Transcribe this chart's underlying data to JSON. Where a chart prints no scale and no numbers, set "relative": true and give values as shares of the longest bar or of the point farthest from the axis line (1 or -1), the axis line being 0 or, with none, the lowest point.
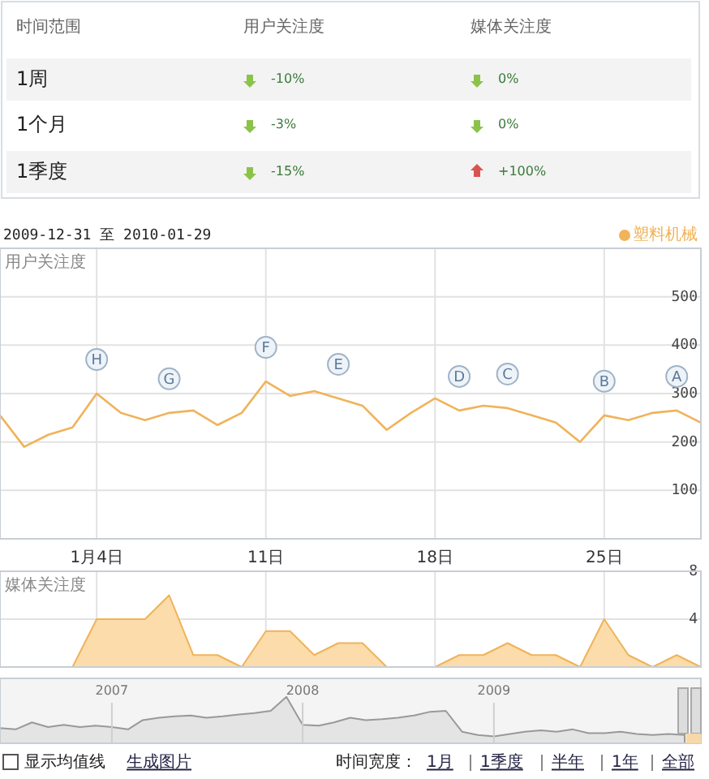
{
  "chart_data": [
    {
      "type": "other",
      "annotations": [
        "时间范围",
        "用户关注度",
        "媒体关注度",
        "1周",
        "-10%",
        "0%",
        "1个月",
        "-3%",
        "0%",
        "1季度",
        "-15%",
        "+100%"
      ]
    },
    {
      "type": "line",
      "title": "2009-12-31 至 2010-01-29",
      "ylabel": "用户关注度",
      "legend": "top right",
      "grid": true,
      "x": [
        "2009-12-31",
        "2010-01-01",
        "2010-01-02",
        "2010-01-03",
        "2010-01-04",
        "2010-01-05",
        "2010-01-06",
        "2010-01-07",
        "2010-01-08",
        "2010-01-09",
        "2010-01-10",
        "2010-01-11",
        "2010-01-12",
        "2010-01-13",
        "2010-01-14",
        "2010-01-15",
        "2010-01-16",
        "2010-01-17",
        "2010-01-18",
        "2010-01-19",
        "2010-01-20",
        "2010-01-21",
        "2010-01-22",
        "2010-01-23",
        "2010-01-24",
        "2010-01-25",
        "2010-01-26",
        "2010-01-27",
        "2010-01-28",
        "2010-01-29"
      ],
      "series": [
        {
          "name": "塑料机械",
          "color": "#f0b35a",
          "values": [
            255,
            190,
            215,
            230,
            300,
            260,
            245,
            260,
            265,
            235,
            260,
            325,
            295,
            305,
            290,
            275,
            225,
            260,
            290,
            265,
            275,
            270,
            255,
            240,
            200,
            255,
            245,
            260,
            265,
            240
          ]
        }
      ],
      "xlim": [
        "2009-12-31",
        "2010-01-29"
      ],
      "ylim": [
        0,
        600
      ],
      "yticks": [
        100,
        200,
        300,
        400,
        500
      ],
      "xticks": [
        {
          "value": "2010-01-04",
          "label": "1月4日"
        },
        {
          "value": "2010-01-11",
          "label": "11日"
        },
        {
          "value": "2010-01-18",
          "label": "18日"
        },
        {
          "value": "2010-01-25",
          "label": "25日"
        }
      ],
      "annotations": [
        {
          "text": "H",
          "x": "2010-01-04",
          "y": 300
        },
        {
          "text": "G",
          "x": "2010-01-07",
          "y": 260
        },
        {
          "text": "F",
          "x": "2010-01-11",
          "y": 325
        },
        {
          "text": "E",
          "x": "2010-01-14",
          "y": 290
        },
        {
          "text": "D",
          "x": "2010-01-19",
          "y": 265
        },
        {
          "text": "C",
          "x": "2010-01-21",
          "y": 270
        },
        {
          "text": "B",
          "x": "2010-01-25",
          "y": 255
        },
        {
          "text": "A",
          "x": "2010-01-28",
          "y": 265
        }
      ]
    },
    {
      "type": "area",
      "ylabel": "媒体关注度",
      "grid": true,
      "tick_labels": "y",
      "x": [
        "2009-12-31",
        "2010-01-01",
        "2010-01-02",
        "2010-01-03",
        "2010-01-04",
        "2010-01-05",
        "2010-01-06",
        "2010-01-07",
        "2010-01-08",
        "2010-01-09",
        "2010-01-10",
        "2010-01-11",
        "2010-01-12",
        "2010-01-13",
        "2010-01-14",
        "2010-01-15",
        "2010-01-16",
        "2010-01-17",
        "2010-01-18",
        "2010-01-19",
        "2010-01-20",
        "2010-01-21",
        "2010-01-22",
        "2010-01-23",
        "2010-01-24",
        "2010-01-25",
        "2010-01-26",
        "2010-01-27",
        "2010-01-28",
        "2010-01-29"
      ],
      "series": [
        {
          "color": "#f0b35a",
          "values": [
            0,
            0,
            0,
            0,
            4,
            4,
            4,
            6,
            1,
            1,
            0,
            3,
            3,
            1,
            2,
            2,
            0,
            0,
            0,
            1,
            1,
            2,
            1,
            1,
            0,
            4,
            1,
            0,
            1,
            0
          ]
        }
      ],
      "xlim": [
        "2009-12-31",
        "2010-01-29"
      ],
      "ylim": [
        0,
        8
      ],
      "yticks": [
        4,
        8
      ],
      "xticks": [
        {
          "value": "2010-01-04",
          "label": null
        },
        {
          "value": "2010-01-11",
          "label": null
        },
        {
          "value": "2010-01-18",
          "label": null
        },
        {
          "value": "2010-01-25",
          "label": null
        }
      ]
    },
    {
      "type": "area",
      "relative": true,
      "grid": "x",
      "x": [
        "2006-06",
        "2006-07",
        "2006-08",
        "2006-09",
        "2006-10",
        "2006-11",
        "2006-12",
        "2007-01",
        "2007-02",
        "2007-03",
        "2007-04",
        "2007-05",
        "2007-06",
        "2007-07",
        "2007-08",
        "2007-09",
        "2007-10",
        "2007-11",
        "2007-12",
        "2008-01",
        "2008-02",
        "2008-03",
        "2008-04",
        "2008-05",
        "2008-06",
        "2008-07",
        "2008-08",
        "2008-09",
        "2008-10",
        "2008-11",
        "2008-12",
        "2009-01",
        "2009-02",
        "2009-03",
        "2009-04",
        "2009-05",
        "2009-06",
        "2009-07",
        "2009-08",
        "2009-09",
        "2009-10",
        "2009-11",
        "2009-12",
        "2010-01"
      ],
      "series": [
        {
          "color": "#999999",
          "values": [
            0.33,
            0.3,
            0.45,
            0.35,
            0.4,
            0.35,
            0.38,
            0.35,
            0.3,
            0.5,
            0.55,
            0.58,
            0.6,
            0.55,
            0.58,
            0.62,
            0.65,
            0.7,
            1.0,
            0.4,
            0.38,
            0.45,
            0.55,
            0.5,
            0.52,
            0.55,
            0.6,
            0.68,
            0.7,
            0.25,
            0.18,
            0.15,
            0.2,
            0.25,
            0.28,
            0.25,
            0.3,
            0.22,
            0.22,
            0.25,
            0.2,
            0.18,
            0.2,
            0.18
          ]
        }
      ],
      "xlim": [
        "2006-06",
        "2010-02"
      ],
      "xticks": [
        {
          "value": "2007",
          "label": "2007"
        },
        {
          "value": "2008",
          "label": "2008"
        },
        {
          "value": "2009",
          "label": "2009"
        }
      ],
      "annotations": [
        "显示均值线",
        "生成图片",
        "时间宽度：",
        "1月",
        "1季度",
        "半年",
        "1年",
        "全部"
      ]
    }
  ]
}
